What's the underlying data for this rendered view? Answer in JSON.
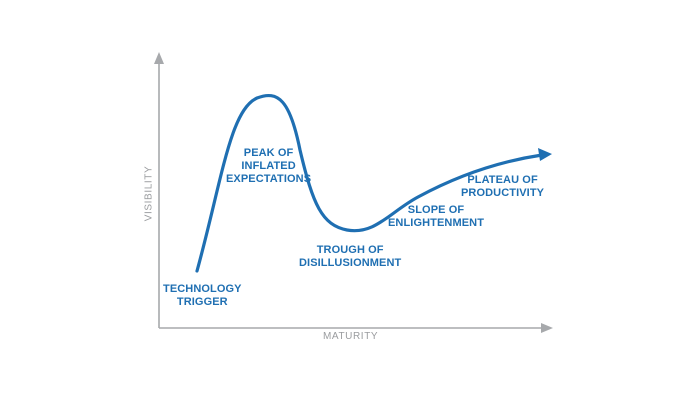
{
  "colors": {
    "curve": "#1f6fb2",
    "label": "#1f6fb2",
    "axis": "#a7a9ac",
    "axis_label": "#9a9c9f",
    "background": "#ffffff"
  },
  "axes": {
    "x_label": "MATURITY",
    "y_label": "VISIBILITY"
  },
  "phases": {
    "technology_trigger": {
      "line1": "TECHNOLOGY",
      "line2": "TRIGGER"
    },
    "peak": {
      "line1": "PEAK OF",
      "line2": "INFLATED",
      "line3": "EXPECTATIONS"
    },
    "trough": {
      "line1": "TROUGH OF",
      "line2": "DISILLUSIONMENT"
    },
    "slope": {
      "line1": "SLOPE OF",
      "line2": "ENLIGHTENMENT"
    },
    "plateau": {
      "line1": "PLATEAU OF",
      "line2": "PRODUCTIVITY"
    }
  }
}
